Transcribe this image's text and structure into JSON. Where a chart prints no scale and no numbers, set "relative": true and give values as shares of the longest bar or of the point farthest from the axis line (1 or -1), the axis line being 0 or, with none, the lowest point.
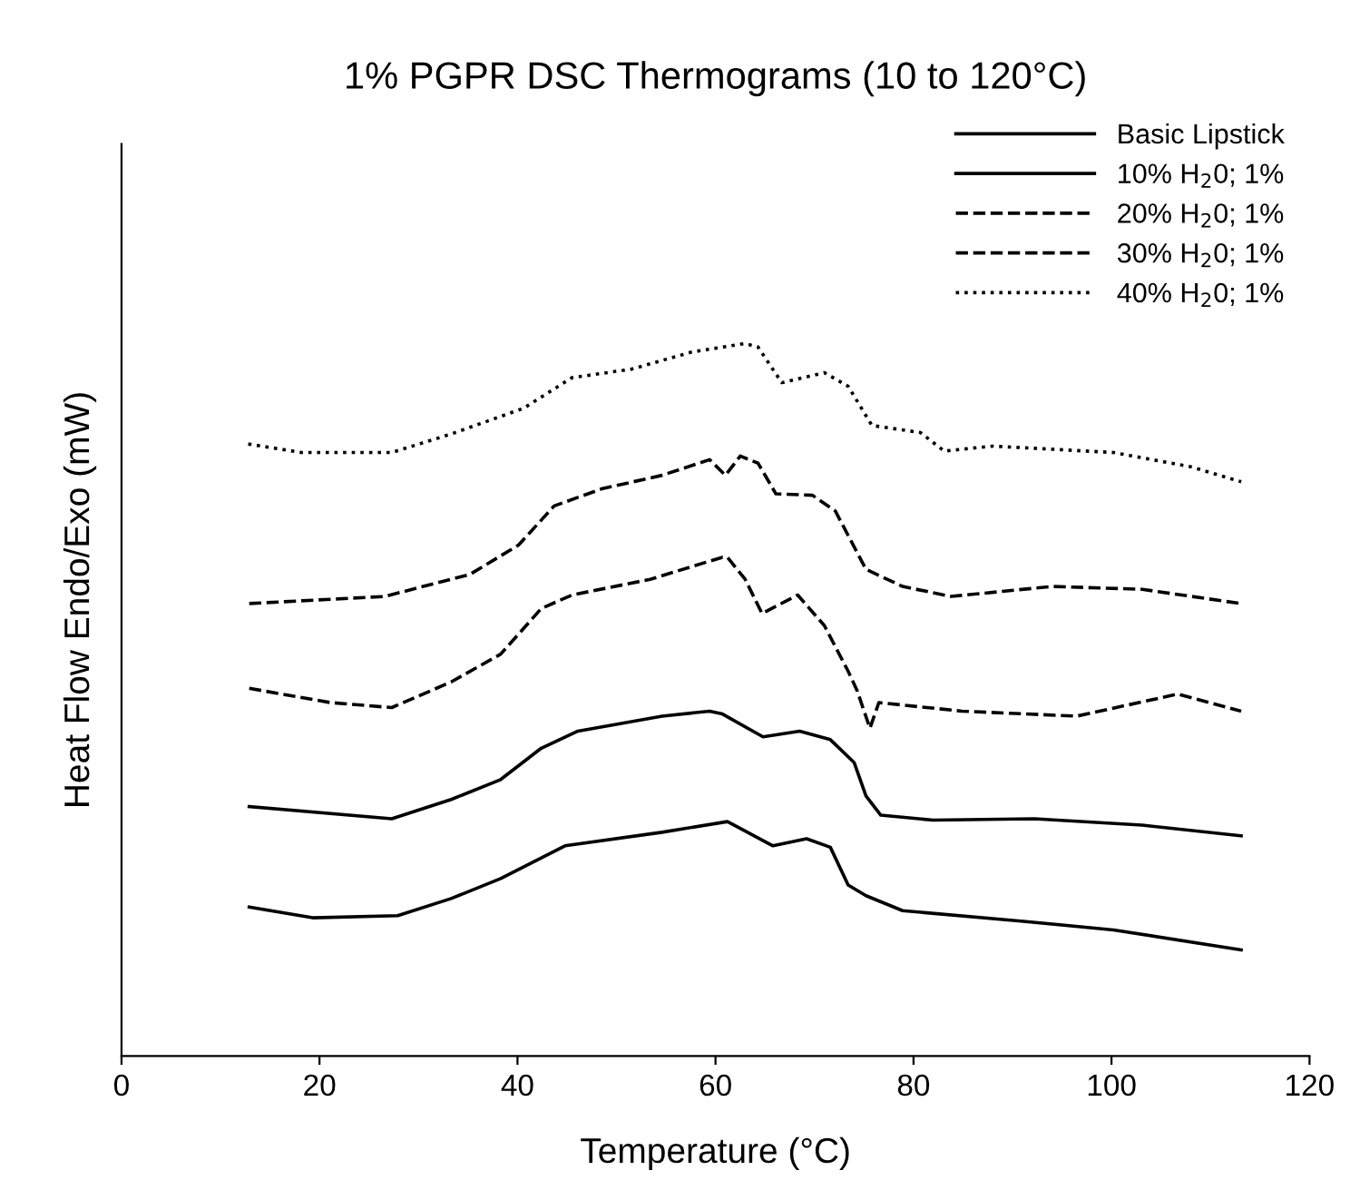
{
  "chart_data": {
    "type": "line",
    "title": "1% PGPR DSC Thermograms (10 to 120°C)",
    "xlabel": "Temperature (°C)",
    "ylabel": "Heat Flow Endo/Exo (mW)",
    "relative": true,
    "xlim": [
      0,
      120
    ],
    "xticks": [
      0,
      20,
      40,
      60,
      80,
      100,
      120
    ],
    "grid": false,
    "legend": "top right",
    "marker": "none",
    "series": [
      {
        "name": "Basic Lipstick",
        "color": "#000000",
        "line_style": "solid",
        "x": [
          12.9,
          19.3,
          27.9,
          33.3,
          38.3,
          44.8,
          54.6,
          61.2,
          61.9,
          65.8,
          69.2,
          71.6,
          73.4,
          75.2,
          78.9,
          91.1,
          100.2,
          113.1
        ],
        "values": [
          0.209,
          0.194,
          0.197,
          0.221,
          0.249,
          0.295,
          0.314,
          0.329,
          0.324,
          0.295,
          0.305,
          0.293,
          0.24,
          0.225,
          0.204,
          0.189,
          0.177,
          0.149
        ]
      },
      {
        "name": "10% H$_{2}$0; 1%",
        "color": "#000000",
        "line_style": "solid",
        "x": [
          12.9,
          27.3,
          33.3,
          38.3,
          42.4,
          46.1,
          54.6,
          59.4,
          60.7,
          64.8,
          68.5,
          71.6,
          74.0,
          75.2,
          76.7,
          82.0,
          92.2,
          103.1,
          113.1
        ],
        "values": [
          0.35,
          0.333,
          0.36,
          0.388,
          0.432,
          0.456,
          0.477,
          0.484,
          0.48,
          0.448,
          0.456,
          0.444,
          0.412,
          0.365,
          0.338,
          0.331,
          0.333,
          0.324,
          0.309
        ]
      },
      {
        "name": "20% H$_{2}$0; 1%",
        "color": "#000000",
        "line_style": "dashed",
        "x": [
          12.9,
          21.1,
          27.3,
          33.3,
          38.3,
          42.4,
          45.5,
          53.4,
          60.7,
          61.2,
          63.0,
          64.7,
          68.3,
          71.0,
          73.4,
          74.3,
          75.6,
          76.5,
          84.9,
          96.5,
          106.7,
          113.1
        ],
        "values": [
          0.516,
          0.496,
          0.489,
          0.525,
          0.564,
          0.628,
          0.647,
          0.669,
          0.7,
          0.7,
          0.669,
          0.621,
          0.647,
          0.604,
          0.54,
          0.513,
          0.46,
          0.496,
          0.484,
          0.477,
          0.508,
          0.484
        ]
      },
      {
        "name": "30% H$_{2}$0; 1%",
        "color": "#000000",
        "line_style": "dashed",
        "x": [
          12.9,
          26.6,
          35.2,
          40.1,
          43.7,
          48.5,
          54.6,
          59.4,
          61.0,
          62.5,
          64.3,
          66.1,
          69.8,
          72.1,
          75.2,
          78.9,
          83.8,
          94.0,
          103.1,
          113.1
        ],
        "values": [
          0.635,
          0.645,
          0.676,
          0.717,
          0.772,
          0.796,
          0.815,
          0.837,
          0.815,
          0.842,
          0.832,
          0.789,
          0.787,
          0.765,
          0.683,
          0.659,
          0.645,
          0.659,
          0.655,
          0.635
        ]
      },
      {
        "name": "40% H$_{2}$0; 1%",
        "color": "#000000",
        "line_style": "dotted",
        "x": [
          12.8,
          18.2,
          27.3,
          33.3,
          40.6,
          45.5,
          51.5,
          57.6,
          63.0,
          64.3,
          66.7,
          71.0,
          73.4,
          75.8,
          80.7,
          83.1,
          88.0,
          100.2,
          108.0,
          113.1
        ],
        "values": [
          0.859,
          0.847,
          0.847,
          0.873,
          0.909,
          0.952,
          0.964,
          0.988,
          1.0,
          0.995,
          0.945,
          0.959,
          0.94,
          0.885,
          0.875,
          0.849,
          0.856,
          0.847,
          0.827,
          0.806
        ]
      }
    ]
  }
}
